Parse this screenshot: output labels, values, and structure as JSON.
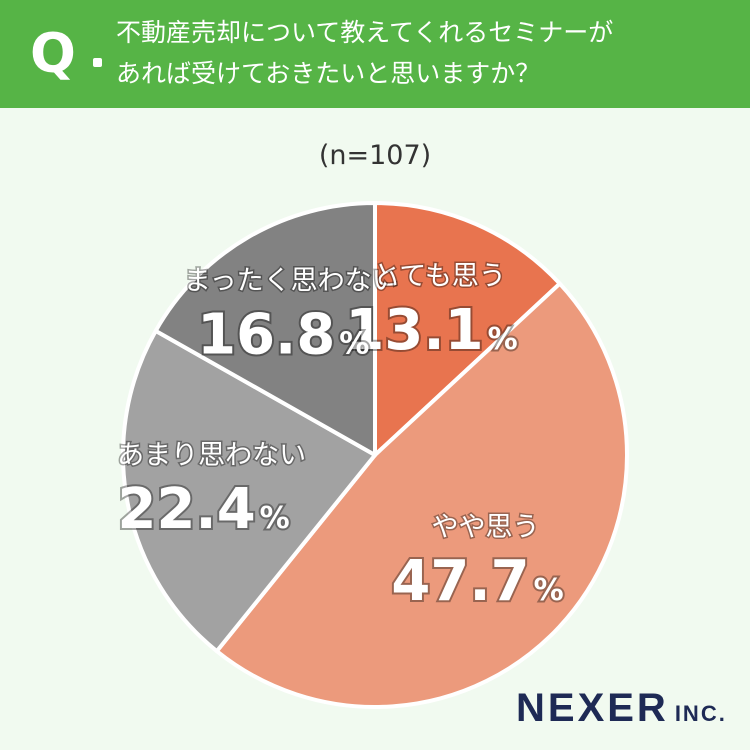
{
  "header": {
    "q_mark": "Q",
    "question_line1": "不動産売却について教えてくれるセミナーが",
    "question_line2": "あれば受けておきたいと思いますか？"
  },
  "sample_note": "(n=107)",
  "brand": {
    "name": "NEXER",
    "suffix": "INC."
  },
  "colors": {
    "header_bg": "#56b446",
    "background": "#f1faf0",
    "slice_1": "#e8744f",
    "slice_2": "#ec9a7c",
    "slice_3": "#a2a2a2",
    "slice_4": "#828282",
    "brand": "#1e2a55"
  },
  "chart_data": {
    "type": "pie",
    "title": "不動産売却について教えてくれるセミナーがあれば受けておきたいと思いますか？",
    "n": 107,
    "slices": [
      {
        "label": "とても思う",
        "value": 13.1,
        "display": "13.1",
        "unit": "%",
        "color": "#e8744f"
      },
      {
        "label": "やや思う",
        "value": 47.7,
        "display": "47.7",
        "unit": "%",
        "color": "#ec9a7c"
      },
      {
        "label": "あまり思わない",
        "value": 22.4,
        "display": "22.4",
        "unit": "%",
        "color": "#a2a2a2"
      },
      {
        "label": "まったく思わない",
        "value": 16.8,
        "display": "16.8",
        "unit": "%",
        "color": "#828282"
      }
    ]
  }
}
